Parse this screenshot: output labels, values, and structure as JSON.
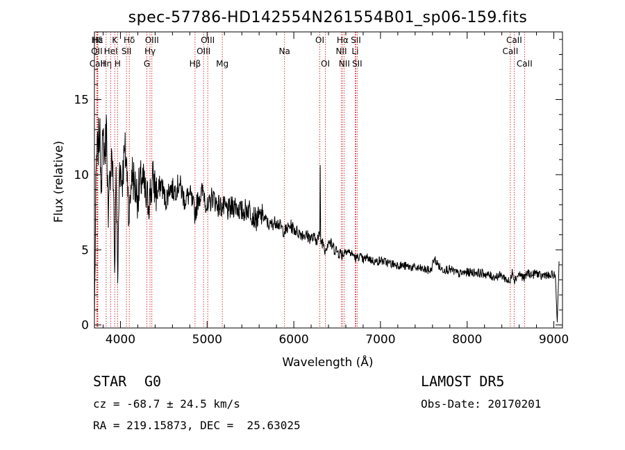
{
  "chart_data": {
    "type": "line",
    "title": "spec-57786-HD142554N261554B01_sp06-159.fits",
    "xlabel": "Wavelength (Å)",
    "ylabel": "Flux (relative)",
    "xlim": [
      3700,
      9100
    ],
    "ylim": [
      -0.2,
      19.5
    ],
    "xticks": [
      4000,
      5000,
      6000,
      7000,
      8000,
      9000
    ],
    "yticks": [
      0,
      5,
      10,
      15
    ],
    "grid": false,
    "colors": {
      "spectrum": "#000000",
      "line_markers": "#cc0000"
    },
    "series": [
      {
        "x": [
          3700,
          3720,
          3740,
          3760,
          3780,
          3800,
          3820,
          3840,
          3860,
          3880,
          3900,
          3920,
          3933,
          3950,
          3968,
          3990,
          4020,
          4050,
          4080,
          4101,
          4130,
          4160,
          4200,
          4250,
          4300,
          4340,
          4380,
          4420,
          4470,
          4520,
          4570,
          4620,
          4680,
          4740,
          4800,
          4861,
          4900,
          4960,
          5007,
          5060,
          5120,
          5183,
          5250,
          5320,
          5400,
          5480,
          5560,
          5640,
          5720,
          5800,
          5893,
          5960,
          6040,
          6120,
          6200,
          6260,
          6300,
          6305,
          6310,
          6340,
          6363,
          6400,
          6450,
          6500,
          6563,
          6600,
          6650,
          6700,
          6717,
          6760,
          6800,
          6850,
          6900,
          6950,
          7000,
          7100,
          7200,
          7300,
          7400,
          7500,
          7580,
          7620,
          7700,
          7800,
          7900,
          8000,
          8100,
          8200,
          8300,
          8400,
          8498,
          8520,
          8542,
          8600,
          8662,
          8700,
          8750,
          8800,
          8850,
          8900,
          8950,
          9000,
          9020,
          9040,
          9060
        ],
        "values": [
          0.5,
          10.5,
          11.8,
          12.8,
          9.6,
          12.6,
          11.2,
          13.5,
          6.5,
          10.2,
          11.5,
          9.0,
          3.5,
          10.5,
          2.8,
          10.8,
          9.6,
          11.6,
          10.2,
          6.8,
          10.3,
          9.4,
          8.6,
          9.8,
          8.2,
          8.6,
          9.7,
          8.6,
          9.5,
          8.2,
          9.2,
          8.9,
          9.4,
          8.3,
          8.7,
          7.4,
          8.5,
          8.9,
          7.6,
          8.6,
          8.0,
          7.8,
          7.6,
          8.0,
          7.5,
          7.8,
          7.0,
          7.3,
          6.6,
          6.9,
          6.2,
          6.6,
          6.2,
          6.0,
          5.8,
          5.7,
          5.9,
          10.6,
          5.6,
          5.5,
          5.0,
          5.6,
          5.2,
          4.9,
          4.7,
          5.0,
          4.8,
          4.6,
          4.4,
          4.6,
          4.3,
          4.5,
          4.3,
          4.2,
          4.3,
          4.1,
          4.0,
          3.9,
          3.8,
          3.7,
          3.6,
          4.4,
          3.7,
          3.7,
          3.4,
          3.5,
          3.5,
          3.4,
          3.2,
          3.3,
          2.8,
          3.7,
          3.0,
          3.4,
          3.1,
          3.5,
          3.3,
          3.5,
          3.2,
          3.4,
          3.2,
          3.4,
          3.0,
          0.2,
          4.2
        ]
      }
    ],
    "line_markers": [
      {
        "label": "Hδ",
        "x": 3730,
        "row": 1
      },
      {
        "label": "OII",
        "x": 3727,
        "row": 2
      },
      {
        "label": "CaII",
        "x": 3733,
        "row": 3
      },
      {
        "label": "Hε",
        "x": 3740,
        "row": 1
      },
      {
        "label": "Hη",
        "x": 3835,
        "row": 3
      },
      {
        "label": "HeI",
        "x": 3889,
        "row": 2
      },
      {
        "label": "K",
        "x": 3934,
        "row": 1
      },
      {
        "label": "H",
        "x": 3968,
        "row": 3
      },
      {
        "label": "SII",
        "x": 4069,
        "row": 2
      },
      {
        "label": "Hδ",
        "x": 4102,
        "row": 1
      },
      {
        "label": "G",
        "x": 4305,
        "row": 3
      },
      {
        "label": "Hγ",
        "x": 4341,
        "row": 2
      },
      {
        "label": "OIII",
        "x": 4363,
        "row": 1
      },
      {
        "label": "Hβ",
        "x": 4861,
        "row": 3
      },
      {
        "label": "OIII",
        "x": 4959,
        "row": 2
      },
      {
        "label": "OIII",
        "x": 5007,
        "row": 1
      },
      {
        "label": "Mg",
        "x": 5175,
        "row": 3
      },
      {
        "label": "Na",
        "x": 5893,
        "row": 2
      },
      {
        "label": "OI",
        "x": 6300,
        "row": 1
      },
      {
        "label": "OI",
        "x": 6364,
        "row": 3
      },
      {
        "label": "NII",
        "x": 6548,
        "row": 2
      },
      {
        "label": "Hα",
        "x": 6563,
        "row": 1
      },
      {
        "label": "NII",
        "x": 6583,
        "row": 3
      },
      {
        "label": "Li",
        "x": 6708,
        "row": 2
      },
      {
        "label": "SII",
        "x": 6716,
        "row": 1
      },
      {
        "label": "SII",
        "x": 6731,
        "row": 3
      },
      {
        "label": "CaII",
        "x": 8498,
        "row": 2
      },
      {
        "label": "CaII",
        "x": 8542,
        "row": 1
      },
      {
        "label": "CaII",
        "x": 8662,
        "row": 3
      }
    ]
  },
  "info": {
    "class": "STAR",
    "subclass": "G0",
    "survey": "LAMOST DR5",
    "cz": "cz = -68.7 ± 24.5 km/s",
    "obs_date": "Obs-Date: 20170201",
    "coords": "RA = 219.15873, DEC =  25.63025"
  }
}
